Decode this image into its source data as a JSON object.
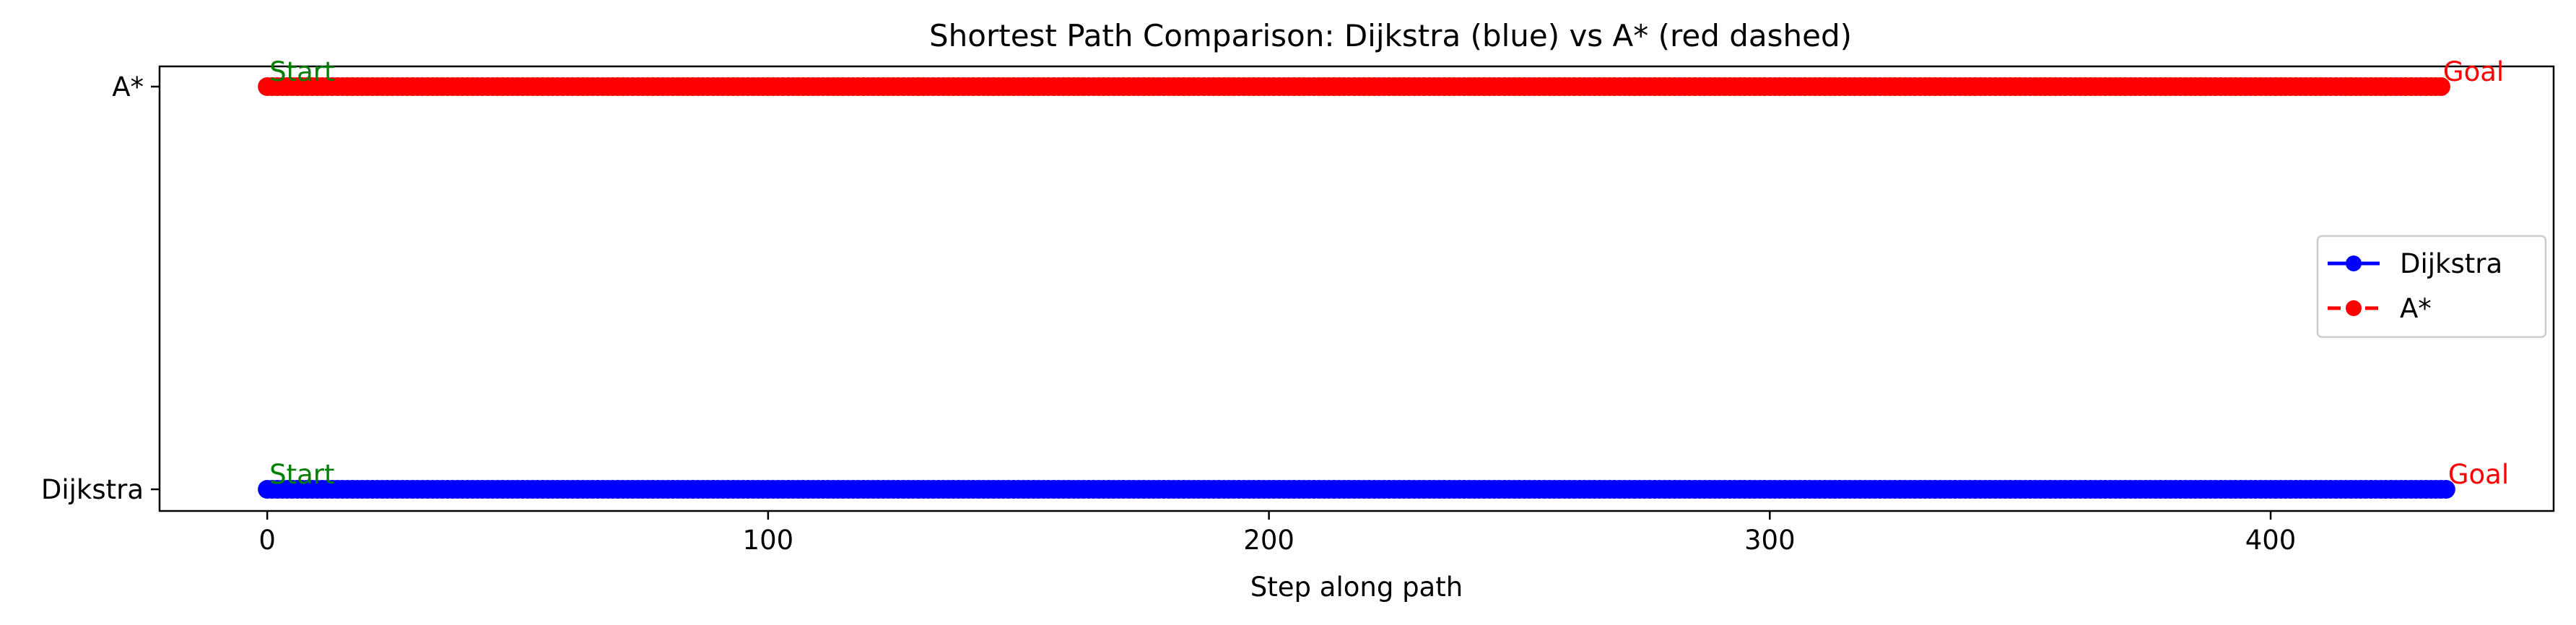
{
  "chart_data": {
    "type": "line",
    "title": "Shortest Path Comparison: Dijkstra (blue) vs A* (red dashed)",
    "xlabel": "Step along path",
    "ylabel": "",
    "xlim": [
      -21.5,
      456.5
    ],
    "x_ticks": [
      0,
      100,
      200,
      300,
      400
    ],
    "y_categories": [
      "Dijkstra",
      "A*"
    ],
    "grid": false,
    "legend": {
      "placement": "center-right",
      "entries": [
        "Dijkstra",
        "A*"
      ]
    },
    "series": [
      {
        "name": "Dijkstra",
        "color": "#0000ff",
        "linestyle": "solid",
        "marker": "circle",
        "y_category": "Dijkstra",
        "x_start": 0,
        "x_end": 435,
        "step": 1
      },
      {
        "name": "A*",
        "color": "#ff0000",
        "linestyle": "dashed",
        "marker": "circle",
        "y_category": "A*",
        "x_start": 0,
        "x_end": 434,
        "step": 1
      }
    ],
    "annotations": [
      {
        "text": "Start",
        "x": 0,
        "y_category": "Dijkstra",
        "color": "#008000"
      },
      {
        "text": "Goal",
        "x": 435,
        "y_category": "Dijkstra",
        "color": "#ff0000"
      },
      {
        "text": "Start",
        "x": 0,
        "y_category": "A*",
        "color": "#008000"
      },
      {
        "text": "Goal",
        "x": 434,
        "y_category": "A*",
        "color": "#ff0000"
      }
    ]
  }
}
